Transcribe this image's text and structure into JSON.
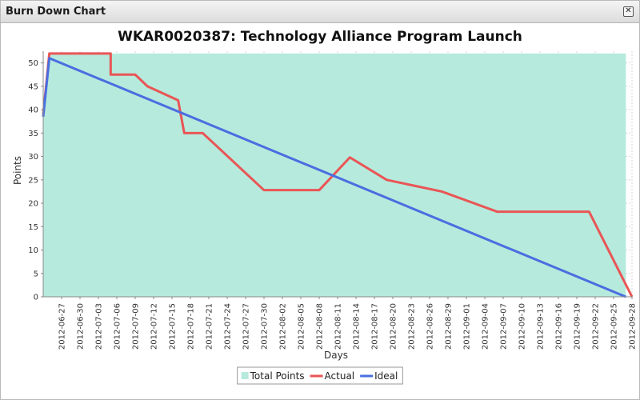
{
  "window": {
    "title": "Burn Down Chart",
    "close_icon": "close-icon"
  },
  "chart_data": {
    "type": "area",
    "title": "WKAR0020387: Technology Alliance Program Launch",
    "xlabel": "Days",
    "ylabel": "Points",
    "ylim": [
      0,
      52.5
    ],
    "yticks": [
      0,
      5,
      10,
      15,
      20,
      25,
      30,
      35,
      40,
      45,
      50
    ],
    "xlim": [
      "2012-06-24",
      "2012-09-28"
    ],
    "xticks": [
      "2012-06-27",
      "2012-06-30",
      "2012-07-03",
      "2012-07-06",
      "2012-07-09",
      "2012-07-12",
      "2012-07-15",
      "2012-07-18",
      "2012-07-21",
      "2012-07-24",
      "2012-07-27",
      "2012-07-30",
      "2012-08-02",
      "2012-08-05",
      "2012-08-08",
      "2012-08-11",
      "2012-08-14",
      "2012-08-17",
      "2012-08-20",
      "2012-08-23",
      "2012-08-26",
      "2012-08-29",
      "2012-09-01",
      "2012-09-04",
      "2012-09-07",
      "2012-09-10",
      "2012-09-13",
      "2012-09-16",
      "2012-09-19",
      "2012-09-22",
      "2012-09-25",
      "2012-09-28"
    ],
    "grid": true,
    "legend_position": "bottom",
    "series": [
      {
        "name": "Total Points",
        "kind": "area",
        "color": "#b6eadd",
        "points": [
          [
            "2012-06-24",
            38.5
          ],
          [
            "2012-06-25",
            52
          ],
          [
            "2012-09-27",
            52
          ]
        ]
      },
      {
        "name": "Actual",
        "kind": "line",
        "color": "#e95555",
        "points": [
          [
            "2012-06-24",
            39
          ],
          [
            "2012-06-25",
            52
          ],
          [
            "2012-07-05",
            52
          ],
          [
            "2012-07-05",
            47.5
          ],
          [
            "2012-07-09",
            47.5
          ],
          [
            "2012-07-11",
            45
          ],
          [
            "2012-07-16",
            42
          ],
          [
            "2012-07-17",
            35
          ],
          [
            "2012-07-20",
            35
          ],
          [
            "2012-07-30",
            22.8
          ],
          [
            "2012-08-08",
            22.8
          ],
          [
            "2012-08-13",
            29.8
          ],
          [
            "2012-08-19",
            25
          ],
          [
            "2012-08-28",
            22.5
          ],
          [
            "2012-09-06",
            18.2
          ],
          [
            "2012-09-21",
            18.2
          ],
          [
            "2012-09-28",
            0
          ]
        ]
      },
      {
        "name": "Ideal",
        "kind": "line",
        "color": "#4a6ee0",
        "points": [
          [
            "2012-06-24",
            38.5
          ],
          [
            "2012-06-25",
            51
          ],
          [
            "2012-09-27",
            0
          ]
        ]
      }
    ]
  }
}
